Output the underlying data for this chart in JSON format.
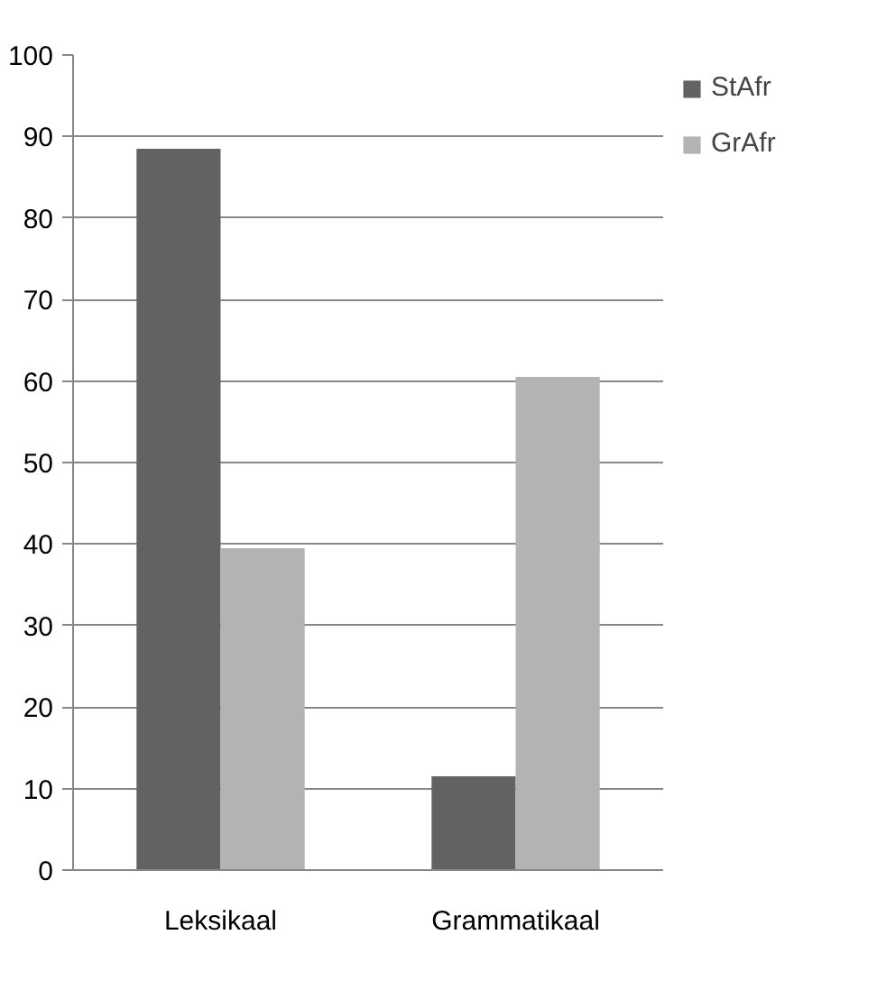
{
  "chart_data": {
    "type": "bar",
    "categories": [
      "Leksikaal",
      "Grammatikaal"
    ],
    "series": [
      {
        "name": "StAfr",
        "color": "#626262",
        "values": [
          88.5,
          11.5
        ]
      },
      {
        "name": "GrAfr",
        "color": "#b3b3b3",
        "values": [
          39.5,
          60.5
        ]
      }
    ],
    "ylim": [
      0,
      100
    ],
    "yticks": [
      0,
      10,
      20,
      30,
      40,
      50,
      60,
      70,
      80,
      90,
      100
    ],
    "grid": "y",
    "legend": "right"
  }
}
